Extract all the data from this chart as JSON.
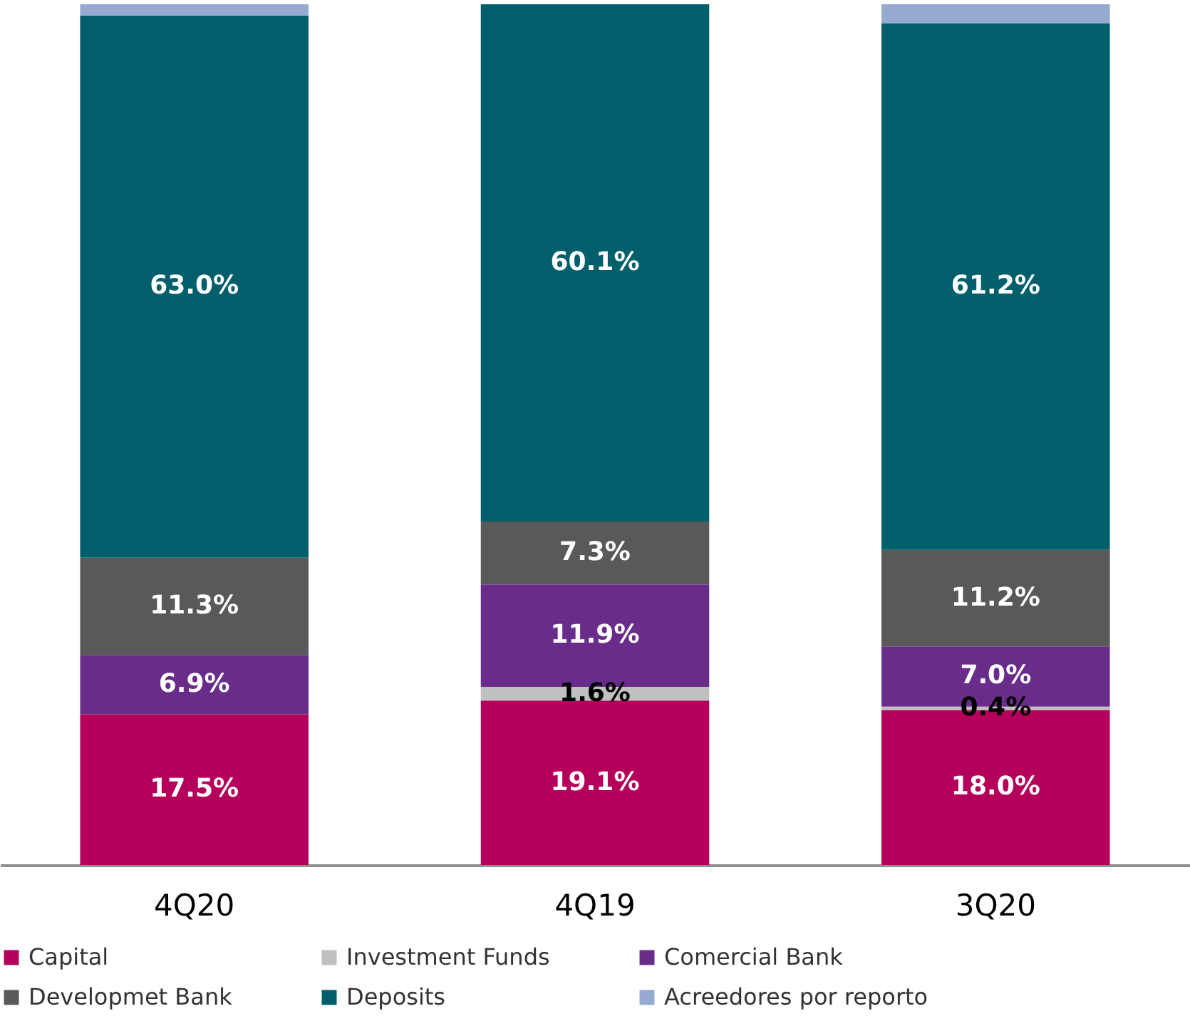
{
  "chart_data": {
    "type": "bar",
    "stacked": true,
    "legend": "bottom",
    "categories": [
      "4Q20",
      "4Q19",
      "3Q20"
    ],
    "series": [
      {
        "name": "Capital",
        "color": "#b5005b",
        "values": [
          17.5,
          19.1,
          18.0
        ],
        "value_labels": [
          "17.5%",
          "19.1%",
          "18.0%"
        ]
      },
      {
        "name": "Investment Funds",
        "color": "#c0c0c0",
        "values": [
          null,
          1.6,
          0.4
        ],
        "value_labels": [
          null,
          "1.6%",
          "0.4%"
        ]
      },
      {
        "name": "Comercial Bank",
        "color": "#6a2c8a",
        "values": [
          6.9,
          11.9,
          7.0
        ],
        "value_labels": [
          "6.9%",
          "11.9%",
          "7.0%"
        ]
      },
      {
        "name": "Developmet Bank",
        "color": "#595959",
        "values": [
          11.3,
          7.3,
          11.2
        ],
        "value_labels": [
          "11.3%",
          "7.3%",
          "11.2%"
        ]
      },
      {
        "name": "Deposits",
        "color": "#005f6b",
        "values": [
          63.0,
          60.1,
          61.2
        ],
        "value_labels": [
          "63.0%",
          "60.1%",
          "61.2%"
        ]
      },
      {
        "name": "Acreedores por reporto",
        "color": "#95a9d1",
        "values": [
          1.3,
          null,
          2.2
        ],
        "value_labels": [
          null,
          null,
          null
        ]
      }
    ]
  }
}
